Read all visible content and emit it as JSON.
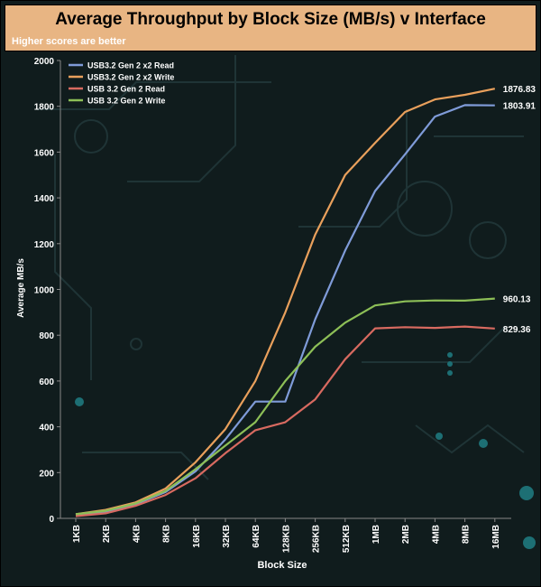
{
  "chart_data": {
    "type": "line",
    "title": "Average Throughput by Block Size (MB/s) v Interface",
    "subtitle": "Higher scores are better",
    "xlabel": "Block Size",
    "ylabel": "Average MB/s",
    "ylim": [
      0,
      2000
    ],
    "yticks": [
      0,
      200,
      400,
      600,
      800,
      1000,
      1200,
      1400,
      1600,
      1800,
      2000
    ],
    "categories": [
      "1KB",
      "2KB",
      "4KB",
      "8KB",
      "16KB",
      "32KB",
      "64KB",
      "128KB",
      "256KB",
      "512KB",
      "1MB",
      "2MB",
      "4MB",
      "8MB",
      "16MB"
    ],
    "legend_position": "top-left",
    "series": [
      {
        "name": "USB3.2 Gen 2 x2 Read",
        "color": "#7f9bd8",
        "end_label": "1803.91",
        "values": [
          15,
          30,
          62,
          115,
          205,
          345,
          510,
          510,
          870,
          1170,
          1430,
          1590,
          1755,
          1805,
          1803.91
        ]
      },
      {
        "name": "USB3.2 Gen 2 x2 Write",
        "color": "#e9a05c",
        "end_label": "1876.83",
        "values": [
          18,
          37,
          70,
          130,
          245,
          390,
          600,
          900,
          1240,
          1500,
          1640,
          1775,
          1830,
          1850,
          1876.83
        ]
      },
      {
        "name": "USB 3.2 Gen 2 Read",
        "color": "#d86a60",
        "end_label": "829.36",
        "values": [
          10,
          22,
          55,
          102,
          175,
          285,
          385,
          420,
          520,
          695,
          830,
          835,
          832,
          838,
          829.36
        ]
      },
      {
        "name": "USB 3.2 Gen 2 Write",
        "color": "#8dbf57",
        "end_label": "960.13",
        "values": [
          18,
          33,
          65,
          120,
          215,
          318,
          420,
          600,
          750,
          855,
          930,
          948,
          952,
          951,
          960.13
        ]
      }
    ]
  }
}
